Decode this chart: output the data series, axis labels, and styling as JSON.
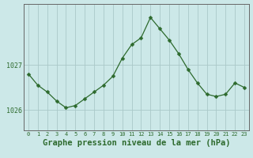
{
  "hours": [
    0,
    1,
    2,
    3,
    4,
    5,
    6,
    7,
    8,
    9,
    10,
    11,
    12,
    13,
    14,
    15,
    16,
    17,
    18,
    19,
    20,
    21,
    22,
    23
  ],
  "pressure": [
    1026.8,
    1026.55,
    1026.4,
    1026.2,
    1026.05,
    1026.1,
    1026.25,
    1026.4,
    1026.55,
    1026.75,
    1027.15,
    1027.45,
    1027.6,
    1028.05,
    1027.8,
    1027.55,
    1027.25,
    1026.9,
    1026.6,
    1026.35,
    1026.3,
    1026.35,
    1026.6,
    1026.5
  ],
  "line_color": "#2d6a2d",
  "marker": "D",
  "marker_size": 2.5,
  "bg_color": "#cce8e8",
  "plot_bg_color": "#cce8e8",
  "grid_color": "#aac8c8",
  "xlabel": "Graphe pression niveau de la mer (hPa)",
  "xlabel_fontsize": 7.5,
  "ytick_labels": [
    "1026",
    "1027"
  ],
  "ytick_values": [
    1026,
    1027
  ],
  "ylim": [
    1025.55,
    1028.35
  ],
  "xlim": [
    -0.5,
    23.5
  ],
  "spine_color": "#666666",
  "tick_color": "#2d6a2d",
  "label_color": "#2d6a2d"
}
